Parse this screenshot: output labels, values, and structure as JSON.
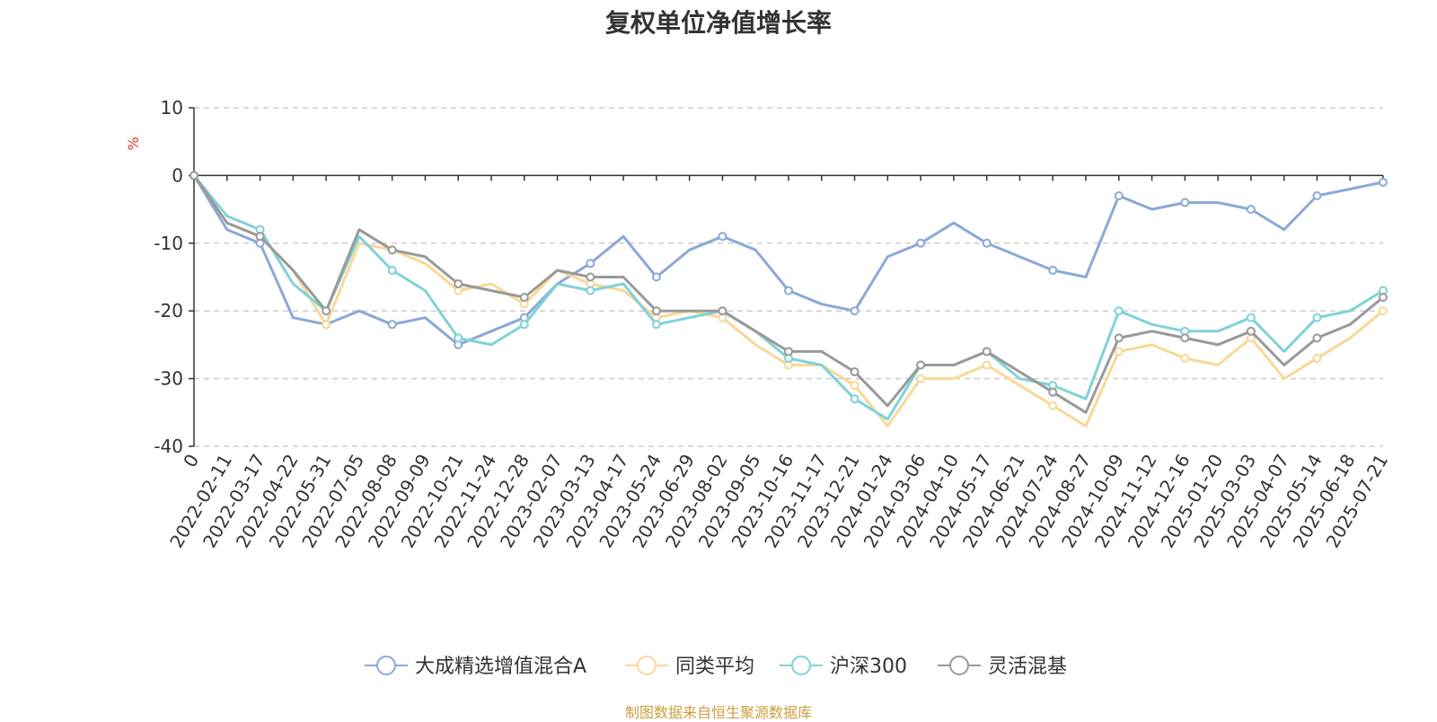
{
  "title": "复权单位净值增长率",
  "source_note": "制图数据来自恒生聚源数据库",
  "chart_data": {
    "type": "line",
    "ylabel": "%",
    "ylim": [
      -40,
      10
    ],
    "yticks": [
      10,
      0,
      -10,
      -20,
      -30,
      -40
    ],
    "grid": true,
    "legend_position": "bottom-center",
    "x_tick_labels": [
      "0",
      "2022-02-11",
      "2022-03-17",
      "2022-04-22",
      "2022-05-31",
      "2022-07-05",
      "2022-08-08",
      "2022-09-09",
      "2022-10-21",
      "2022-11-24",
      "2022-12-28",
      "2023-02-07",
      "2023-03-13",
      "2023-04-17",
      "2023-05-24",
      "2023-06-29",
      "2023-08-02",
      "2023-09-05",
      "2023-10-16",
      "2023-11-17",
      "2023-12-21",
      "2024-01-24",
      "2024-03-06",
      "2024-04-10",
      "2024-05-17",
      "2024-06-21",
      "2024-07-24",
      "2024-08-27",
      "2024-10-09",
      "2024-11-12",
      "2024-12-16",
      "2025-01-20",
      "2025-03-03",
      "2025-04-07",
      "2025-05-14",
      "2025-06-18",
      "2025-07-21"
    ],
    "series": [
      {
        "name": "大成精选增值混合A",
        "color": "#8ba8d8",
        "values": [
          0,
          -8,
          -10,
          -21,
          -22,
          -20,
          -22,
          -21,
          -25,
          -23,
          -21,
          -16,
          -13,
          -9,
          -15,
          -11,
          -9,
          -11,
          -17,
          -19,
          -20,
          -12,
          -10,
          -7,
          -10,
          -12,
          -14,
          -15,
          -3,
          -5,
          -4,
          -4,
          -5,
          -8,
          -3,
          -2,
          -1
        ]
      },
      {
        "name": "同类平均",
        "color": "#fad797",
        "values": [
          0,
          -7,
          -9,
          -14,
          -22,
          -10,
          -11,
          -13,
          -17,
          -16,
          -19,
          -14,
          -16,
          -17,
          -21,
          -20,
          -21,
          -25,
          -28,
          -28,
          -31,
          -37,
          -30,
          -30,
          -28,
          -31,
          -34,
          -37,
          -26,
          -25,
          -27,
          -28,
          -24,
          -30,
          -27,
          -24,
          -20
        ]
      },
      {
        "name": "沪深300",
        "color": "#7fd2d6",
        "values": [
          0,
          -6,
          -8,
          -16,
          -20,
          -9,
          -14,
          -17,
          -24,
          -25,
          -22,
          -16,
          -17,
          -16,
          -22,
          -21,
          -20,
          -23,
          -27,
          -28,
          -33,
          -36,
          -28,
          -28,
          -26,
          -30,
          -31,
          -33,
          -20,
          -22,
          -23,
          -23,
          -21,
          -26,
          -21,
          -20,
          -17
        ]
      },
      {
        "name": "灵活混基",
        "color": "#999999",
        "values": [
          0,
          -7,
          -9,
          -14,
          -20,
          -8,
          -11,
          -12,
          -16,
          -17,
          -18,
          -14,
          -15,
          -15,
          -20,
          -20,
          -20,
          -23,
          -26,
          -26,
          -29,
          -34,
          -28,
          -28,
          -26,
          -29,
          -32,
          -35,
          -24,
          -23,
          -24,
          -25,
          -23,
          -28,
          -24,
          -22,
          -18
        ]
      }
    ]
  }
}
